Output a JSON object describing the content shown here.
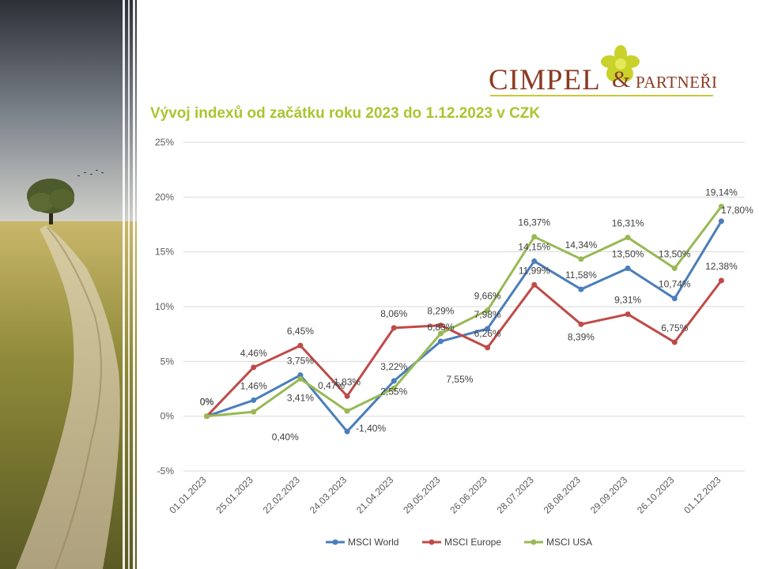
{
  "header": {
    "logo_main": "CIMPEL",
    "logo_amp": "&",
    "logo_sub": "PARTNEŘI",
    "title": "Vývoj indexů od začátku roku 2023 do 1.12.2023 v CZK"
  },
  "colors": {
    "world": "#4a7ebb",
    "europe": "#be4b48",
    "usa": "#98b954",
    "title": "#a9c52f",
    "logo": "#8b3a22"
  },
  "chart_data": {
    "type": "line",
    "title": "Vývoj indexů od začátku roku 2023 do 1.12.2023 v CZK",
    "categories": [
      "01.01.2023",
      "25.01.2023",
      "22.02.2023",
      "24.03.2023",
      "21.04.2023",
      "29.05.2023",
      "26.06.2023",
      "28.07.2023",
      "28.08.2023",
      "29.09.2023",
      "26.10.2023",
      "01.12.2023"
    ],
    "ylim": [
      -5,
      25
    ],
    "yticks": [
      -5,
      0,
      5,
      10,
      15,
      20,
      25
    ],
    "ytick_labels": [
      "-5%",
      "0%",
      "5%",
      "10%",
      "15%",
      "20%",
      "25%"
    ],
    "grid": true,
    "legend_position": "bottom",
    "series": [
      {
        "name": "MSCI World",
        "color": "#4a7ebb",
        "values": [
          0,
          1.46,
          3.75,
          -1.4,
          3.22,
          6.83,
          7.98,
          14.15,
          11.58,
          13.5,
          10.74,
          17.8
        ],
        "labels": [
          "0%",
          "1,46%",
          "3,75%",
          "-1,40%",
          "3,22%",
          "6,83%",
          "7,98%",
          "14,15%",
          "11,58%",
          "13,50%",
          "10,74%",
          "17,80%"
        ]
      },
      {
        "name": "MSCI Europe",
        "color": "#be4b48",
        "values": [
          0,
          4.46,
          6.45,
          1.83,
          8.06,
          8.29,
          6.26,
          11.99,
          8.39,
          9.31,
          6.75,
          12.38
        ],
        "labels": [
          "0%",
          "4,46%",
          "6,45%",
          "1,83%",
          "8,06%",
          "8,29%",
          "6,26%",
          "11,99%",
          "8,39%",
          "9,31%",
          "6,75%",
          "12,38%"
        ]
      },
      {
        "name": "MSCI USA",
        "color": "#98b954",
        "values": [
          0,
          0.4,
          3.41,
          0.47,
          2.55,
          7.55,
          9.66,
          16.37,
          14.34,
          16.31,
          13.5,
          19.14
        ],
        "labels": [
          "0%",
          "0,40%",
          "3,41%",
          "0,47%",
          "2,55%",
          "7,55%",
          "9,66%",
          "16,37%",
          "14,34%",
          "16,31%",
          "13,50%",
          "19,14%"
        ]
      }
    ]
  }
}
